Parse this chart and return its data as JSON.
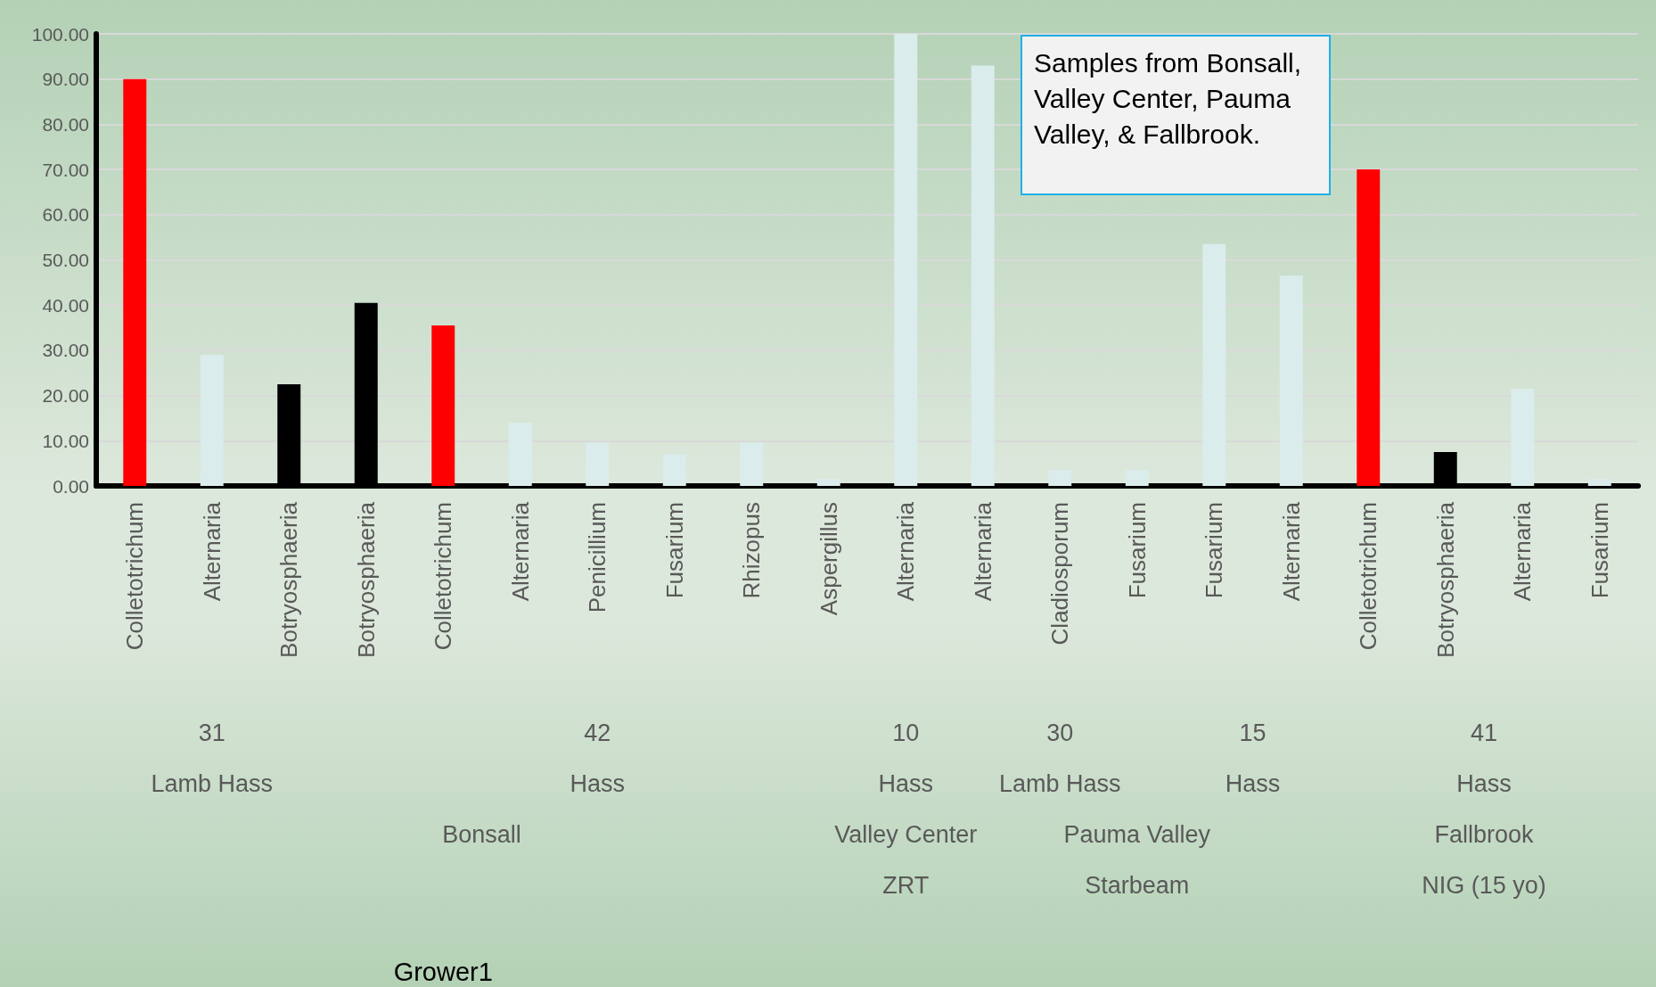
{
  "chart_data": {
    "type": "bar",
    "categories": [
      "Colletotrichum",
      "Alternaria",
      "Botryosphaeria",
      "Botryosphaeria",
      "Colletotrichum",
      "Alternaria",
      "Penicillium",
      "Fusarium",
      "Rhizopus",
      "Aspergillus",
      "Alternaria",
      "Alternaria",
      "Cladiosporum",
      "Fusarium",
      "Fusarium",
      "Alternaria",
      "Colletotrichum",
      "Botryosphaeria",
      "Alternaria",
      "Fusarium"
    ],
    "values": [
      90,
      29,
      22.5,
      40.5,
      35.5,
      14,
      9.5,
      7,
      9.5,
      1.5,
      100,
      93,
      3.5,
      3.5,
      53.5,
      46.5,
      70,
      7.5,
      21.5,
      1.5
    ],
    "colors": [
      "#ff0000",
      "#dbecec",
      "#000000",
      "#000000",
      "#ff0000",
      "#dbecec",
      "#dbecec",
      "#dbecec",
      "#dbecec",
      "#dbecec",
      "#dbecec",
      "#dbecec",
      "#dbecec",
      "#dbecec",
      "#dbecec",
      "#dbecec",
      "#ff0000",
      "#000000",
      "#dbecec",
      "#dbecec"
    ],
    "ylim": [
      0,
      100
    ],
    "yticks": [
      {
        "value": 0,
        "label": "0.00"
      },
      {
        "value": 10,
        "label": "10.00"
      },
      {
        "value": 20,
        "label": "20.00"
      },
      {
        "value": 30,
        "label": "30.00"
      },
      {
        "value": 40,
        "label": "40.00"
      },
      {
        "value": 50,
        "label": "50.00"
      },
      {
        "value": 60,
        "label": "60.00"
      },
      {
        "value": 70,
        "label": "70.00"
      },
      {
        "value": 80,
        "label": "80.00"
      },
      {
        "value": 90,
        "label": "90.00"
      },
      {
        "value": 100,
        "label": "100.00"
      }
    ],
    "grid": "y",
    "annotations": [
      "Samples from Bonsall, Valley Center, Pauma Valley, & Fallbrook.",
      "31",
      "42",
      "10",
      "30",
      "15",
      "41",
      "Lamb Hass",
      "Hass",
      "Hass",
      "Lamb Hass",
      "Hass",
      "Hass",
      "Bonsall",
      "Valley Center",
      "Pauma Valley",
      "Fallbrook",
      "ZRT",
      "Starbeam",
      "NIG (15 yo)",
      "Grower1"
    ]
  }
}
